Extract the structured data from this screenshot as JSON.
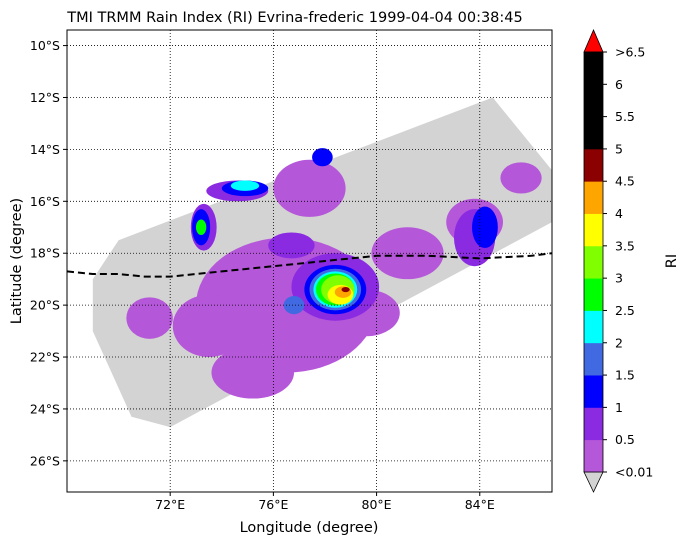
{
  "title": "TMI TRMM Rain Index (RI) Evrina-frederic 1999-04-04 00:38:45",
  "axes": {
    "xlabel": "Longitude (degree)",
    "ylabel": "Latitude (degree)",
    "xticks": [
      {
        "value": 72,
        "label": "72°E"
      },
      {
        "value": 76,
        "label": "76°E"
      },
      {
        "value": 80,
        "label": "80°E"
      },
      {
        "value": 84,
        "label": "84°E"
      }
    ],
    "yticks": [
      {
        "value": -10,
        "label": "10°S"
      },
      {
        "value": -12,
        "label": "12°S"
      },
      {
        "value": -14,
        "label": "14°S"
      },
      {
        "value": -16,
        "label": "16°S"
      },
      {
        "value": -18,
        "label": "18°S"
      },
      {
        "value": -20,
        "label": "20°S"
      },
      {
        "value": -22,
        "label": "22°S"
      },
      {
        "value": -24,
        "label": "24°S"
      },
      {
        "value": -26,
        "label": "26°S"
      }
    ],
    "xlim": [
      68.0,
      86.8
    ],
    "ylim": [
      -27.2,
      -9.4
    ],
    "grid": "dotted"
  },
  "colorbar": {
    "label": "RI",
    "under_color": "#d3d3d3",
    "over_color": "#ff0000",
    "bins": [
      {
        "color": "#b557d9",
        "label": "<0.01"
      },
      {
        "color": "#8a2be2",
        "label": "0.5"
      },
      {
        "color": "#0000ff",
        "label": "1"
      },
      {
        "color": "#4169e1",
        "label": "1.5"
      },
      {
        "color": "#00ffff",
        "label": "2"
      },
      {
        "color": "#00ff00",
        "label": "2.5"
      },
      {
        "color": "#7fff00",
        "label": "3"
      },
      {
        "color": "#ffff00",
        "label": "3.5"
      },
      {
        "color": "#ffa500",
        "label": "4"
      },
      {
        "color": "#8b0000",
        "label": "4.5"
      },
      {
        "color": "#000000",
        "label": "5"
      },
      {
        "color": "#000000",
        "label": "5.5"
      },
      {
        "color": "#000000",
        "label": "6"
      }
    ],
    "top_label": ">6.5"
  },
  "map": {
    "swath_color": "#d3d3d3",
    "swath_outline": [
      [
        69,
        -19
      ],
      [
        70,
        -17.5
      ],
      [
        84.5,
        -12
      ],
      [
        86.8,
        -14.8
      ],
      [
        86.8,
        -16.8
      ],
      [
        72,
        -24.7
      ],
      [
        70.5,
        -24.3
      ],
      [
        69,
        -21
      ]
    ],
    "storm_track": [
      [
        68,
        -18.7
      ],
      [
        69,
        -18.8
      ],
      [
        70,
        -18.8
      ],
      [
        71,
        -18.9
      ],
      [
        72,
        -18.9
      ],
      [
        74,
        -18.7
      ],
      [
        76,
        -18.5
      ],
      [
        78,
        -18.3
      ],
      [
        80,
        -18.1
      ],
      [
        82,
        -18.1
      ],
      [
        84,
        -18.2
      ],
      [
        86,
        -18.1
      ],
      [
        86.8,
        -18.0
      ]
    ],
    "rain_features": [
      {
        "ri": 0.01,
        "lon": 76.5,
        "lat": -20.0,
        "rx": 3.5,
        "ry": 2.6
      },
      {
        "ri": 0.01,
        "lon": 73.5,
        "lat": -20.8,
        "rx": 1.4,
        "ry": 1.2
      },
      {
        "ri": 0.01,
        "lon": 75.2,
        "lat": -22.6,
        "rx": 1.6,
        "ry": 1.0
      },
      {
        "ri": 0.01,
        "lon": 77.4,
        "lat": -15.5,
        "rx": 1.4,
        "ry": 1.1
      },
      {
        "ri": 0.01,
        "lon": 81.2,
        "lat": -18.0,
        "rx": 1.4,
        "ry": 1.0
      },
      {
        "ri": 0.01,
        "lon": 83.8,
        "lat": -16.8,
        "rx": 1.1,
        "ry": 0.9
      },
      {
        "ri": 0.01,
        "lon": 85.6,
        "lat": -15.1,
        "rx": 0.8,
        "ry": 0.6
      },
      {
        "ri": 0.01,
        "lon": 71.2,
        "lat": -20.5,
        "rx": 0.9,
        "ry": 0.8
      },
      {
        "ri": 0.01,
        "lon": 79.6,
        "lat": -20.3,
        "rx": 1.3,
        "ry": 0.9
      },
      {
        "ri": 0.5,
        "lon": 78.4,
        "lat": -19.3,
        "rx": 1.7,
        "ry": 1.3
      },
      {
        "ri": 0.5,
        "lon": 76.7,
        "lat": -17.7,
        "rx": 0.9,
        "ry": 0.5
      },
      {
        "ri": 0.5,
        "lon": 74.6,
        "lat": -15.6,
        "rx": 1.2,
        "ry": 0.4
      },
      {
        "ri": 0.5,
        "lon": 73.3,
        "lat": -17.0,
        "rx": 0.5,
        "ry": 0.9
      },
      {
        "ri": 0.5,
        "lon": 83.8,
        "lat": -17.4,
        "rx": 0.8,
        "ry": 1.1
      },
      {
        "ri": 1,
        "lon": 78.4,
        "lat": -19.4,
        "rx": 1.2,
        "ry": 0.95
      },
      {
        "ri": 1,
        "lon": 74.9,
        "lat": -15.5,
        "rx": 0.9,
        "ry": 0.3
      },
      {
        "ri": 1,
        "lon": 73.2,
        "lat": -17.0,
        "rx": 0.35,
        "ry": 0.7
      },
      {
        "ri": 1,
        "lon": 84.2,
        "lat": -17.0,
        "rx": 0.5,
        "ry": 0.8
      },
      {
        "ri": 1,
        "lon": 77.9,
        "lat": -14.3,
        "rx": 0.4,
        "ry": 0.35
      },
      {
        "ri": 1.5,
        "lon": 78.4,
        "lat": -19.4,
        "rx": 1.0,
        "ry": 0.8
      },
      {
        "ri": 1.5,
        "lon": 76.8,
        "lat": -20.0,
        "rx": 0.4,
        "ry": 0.35
      },
      {
        "ri": 2,
        "lon": 78.4,
        "lat": -19.4,
        "rx": 0.85,
        "ry": 0.7
      },
      {
        "ri": 2,
        "lon": 74.9,
        "lat": -15.4,
        "rx": 0.55,
        "ry": 0.2
      },
      {
        "ri": 2.5,
        "lon": 78.4,
        "lat": -19.4,
        "rx": 0.75,
        "ry": 0.62
      },
      {
        "ri": 2.5,
        "lon": 73.2,
        "lat": -17.0,
        "rx": 0.2,
        "ry": 0.3
      },
      {
        "ri": 3,
        "lon": 78.5,
        "lat": -19.4,
        "rx": 0.65,
        "ry": 0.55
      },
      {
        "ri": 3.5,
        "lon": 78.6,
        "lat": -19.6,
        "rx": 0.5,
        "ry": 0.38
      },
      {
        "ri": 4,
        "lon": 78.7,
        "lat": -19.5,
        "rx": 0.32,
        "ry": 0.22
      },
      {
        "ri": 4.5,
        "lon": 78.8,
        "lat": -19.4,
        "rx": 0.16,
        "ry": 0.1
      }
    ]
  }
}
